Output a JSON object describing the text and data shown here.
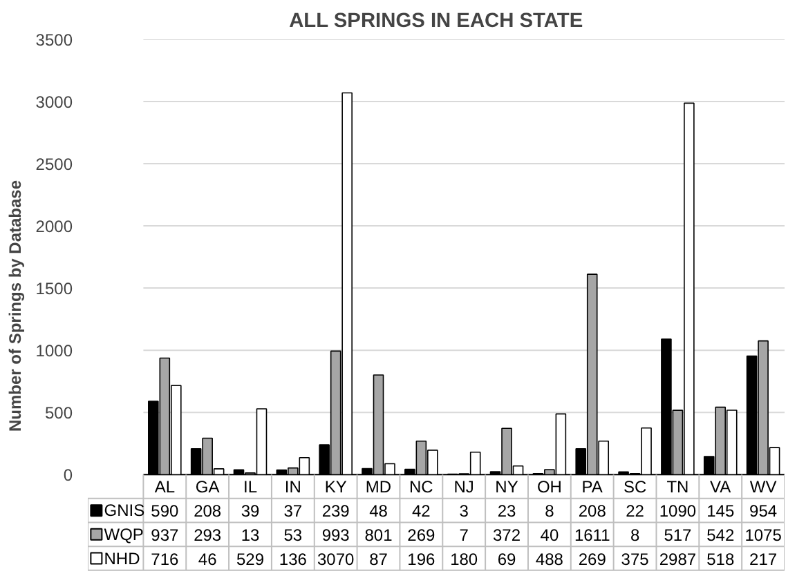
{
  "chart_data": {
    "type": "bar",
    "title": "ALL SPRINGS IN EACH STATE",
    "ylabel": "Number of Springs by Database",
    "categories": [
      "AL",
      "GA",
      "IL",
      "IN",
      "KY",
      "MD",
      "NC",
      "NJ",
      "NY",
      "OH",
      "PA",
      "SC",
      "TN",
      "VA",
      "WV"
    ],
    "series": [
      {
        "name": "GNIS",
        "color": "#000000",
        "values": [
          590,
          208,
          39,
          37,
          239,
          48,
          42,
          3,
          23,
          8,
          208,
          22,
          1090,
          145,
          954
        ]
      },
      {
        "name": "WQP",
        "color": "#a6a6a6",
        "values": [
          937,
          293,
          13,
          53,
          993,
          801,
          269,
          7,
          372,
          40,
          1611,
          8,
          517,
          542,
          1075
        ]
      },
      {
        "name": "NHD",
        "color": "#ffffff",
        "values": [
          716,
          46,
          529,
          136,
          3070,
          87,
          196,
          180,
          69,
          488,
          269,
          375,
          2987,
          518,
          217
        ]
      }
    ],
    "ylim": [
      0,
      3500
    ],
    "yticks": [
      0,
      500,
      1000,
      1500,
      2000,
      2500,
      3000,
      3500
    ],
    "grid": "y",
    "legend": "bottom",
    "data_labels": true
  }
}
